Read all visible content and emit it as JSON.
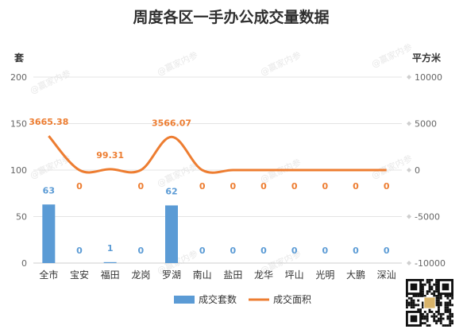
{
  "chart_data": {
    "type": "bar",
    "title": "周度各区一手办公成交量数据",
    "categories": [
      "全市",
      "宝安",
      "福田",
      "龙岗",
      "罗湖",
      "南山",
      "盐田",
      "龙华",
      "坪山",
      "光明",
      "大鹏",
      "深汕"
    ],
    "series": [
      {
        "name": "成交套数",
        "type": "bar",
        "axis": "left",
        "color": "#5b9bd5",
        "values": [
          63,
          0,
          1,
          0,
          62,
          0,
          0,
          0,
          0,
          0,
          0,
          0
        ],
        "labels": [
          "63",
          "0",
          "1",
          "0",
          "62",
          "0",
          "0",
          "0",
          "0",
          "0",
          "0",
          "0"
        ]
      },
      {
        "name": "成交面积",
        "type": "line",
        "axis": "right",
        "color": "#ed7d31",
        "smooth": true,
        "values": [
          3665.38,
          0,
          99.31,
          0,
          3566.07,
          0,
          0,
          0,
          0,
          0,
          0,
          0
        ],
        "labels": [
          "3665.38",
          "0",
          "99.31",
          "0",
          "3566.07",
          "0",
          "0",
          "0",
          "0",
          "0",
          "0",
          "0"
        ]
      }
    ],
    "y_left": {
      "label": "套",
      "ylim": [
        0,
        200
      ],
      "ticks": [
        "0",
        "50",
        "100",
        "150",
        "200"
      ]
    },
    "y_right": {
      "label": "平方米",
      "ylim": [
        -10000,
        10000
      ],
      "ticks": [
        "-10000",
        "-5000",
        "0",
        "5000",
        "10000"
      ]
    },
    "grid": true,
    "legend": "bottom"
  },
  "watermark": "@赢家内参"
}
